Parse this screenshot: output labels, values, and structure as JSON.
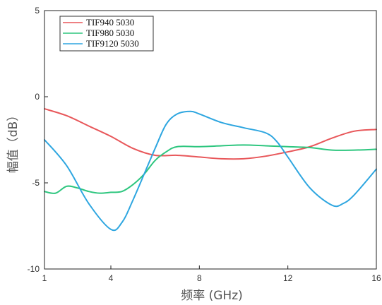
{
  "chart_data": {
    "type": "line",
    "title": "",
    "xlabel": "频率 (GHz)",
    "ylabel": "幅值（dB）",
    "xlim": [
      1,
      16
    ],
    "ylim": [
      -10,
      5
    ],
    "xticks": [
      "1",
      "4",
      "8",
      "12",
      "16"
    ],
    "xtick_values": [
      1,
      4,
      8,
      12,
      16
    ],
    "yticks": [
      "5",
      "0",
      "-5",
      "-10"
    ],
    "ytick_values": [
      5,
      0,
      -5,
      -10
    ],
    "grid": false,
    "legend_position": "top-left",
    "series": [
      {
        "name": "TIF940 5030",
        "color": "#e8575a",
        "points": [
          [
            1,
            -0.7
          ],
          [
            2,
            -1.1
          ],
          [
            3,
            -1.7
          ],
          [
            4,
            -2.3
          ],
          [
            5,
            -3.0
          ],
          [
            6,
            -3.4
          ],
          [
            7,
            -3.4
          ],
          [
            8,
            -3.5
          ],
          [
            9,
            -3.6
          ],
          [
            10,
            -3.6
          ],
          [
            11,
            -3.45
          ],
          [
            12,
            -3.2
          ],
          [
            13,
            -2.9
          ],
          [
            14,
            -2.4
          ],
          [
            15,
            -2.0
          ],
          [
            16,
            -1.9
          ]
        ]
      },
      {
        "name": "TIF980 5030",
        "color": "#2ec67f",
        "points": [
          [
            1,
            -5.5
          ],
          [
            1.5,
            -5.6
          ],
          [
            2,
            -5.2
          ],
          [
            2.5,
            -5.3
          ],
          [
            3,
            -5.5
          ],
          [
            3.5,
            -5.6
          ],
          [
            4,
            -5.55
          ],
          [
            4.5,
            -5.5
          ],
          [
            5,
            -5.1
          ],
          [
            5.5,
            -4.5
          ],
          [
            6,
            -3.7
          ],
          [
            6.5,
            -3.2
          ],
          [
            7,
            -2.9
          ],
          [
            8,
            -2.9
          ],
          [
            9,
            -2.85
          ],
          [
            10,
            -2.8
          ],
          [
            11,
            -2.85
          ],
          [
            12,
            -2.9
          ],
          [
            13,
            -2.95
          ],
          [
            14,
            -3.1
          ],
          [
            15,
            -3.1
          ],
          [
            16,
            -3.05
          ]
        ]
      },
      {
        "name": "TIF9120 5030",
        "color": "#2ea6e0",
        "points": [
          [
            1,
            -2.5
          ],
          [
            2,
            -4.0
          ],
          [
            3,
            -6.2
          ],
          [
            4,
            -7.7
          ],
          [
            4.5,
            -7.3
          ],
          [
            5,
            -6.0
          ],
          [
            6,
            -3.0
          ],
          [
            6.5,
            -1.6
          ],
          [
            7,
            -1.0
          ],
          [
            7.6,
            -0.85
          ],
          [
            8,
            -1.0
          ],
          [
            9,
            -1.5
          ],
          [
            10,
            -1.8
          ],
          [
            11,
            -2.1
          ],
          [
            11.5,
            -2.6
          ],
          [
            12,
            -3.5
          ],
          [
            13,
            -5.3
          ],
          [
            14,
            -6.3
          ],
          [
            14.5,
            -6.2
          ],
          [
            15,
            -5.7
          ],
          [
            16,
            -4.2
          ]
        ]
      }
    ]
  }
}
